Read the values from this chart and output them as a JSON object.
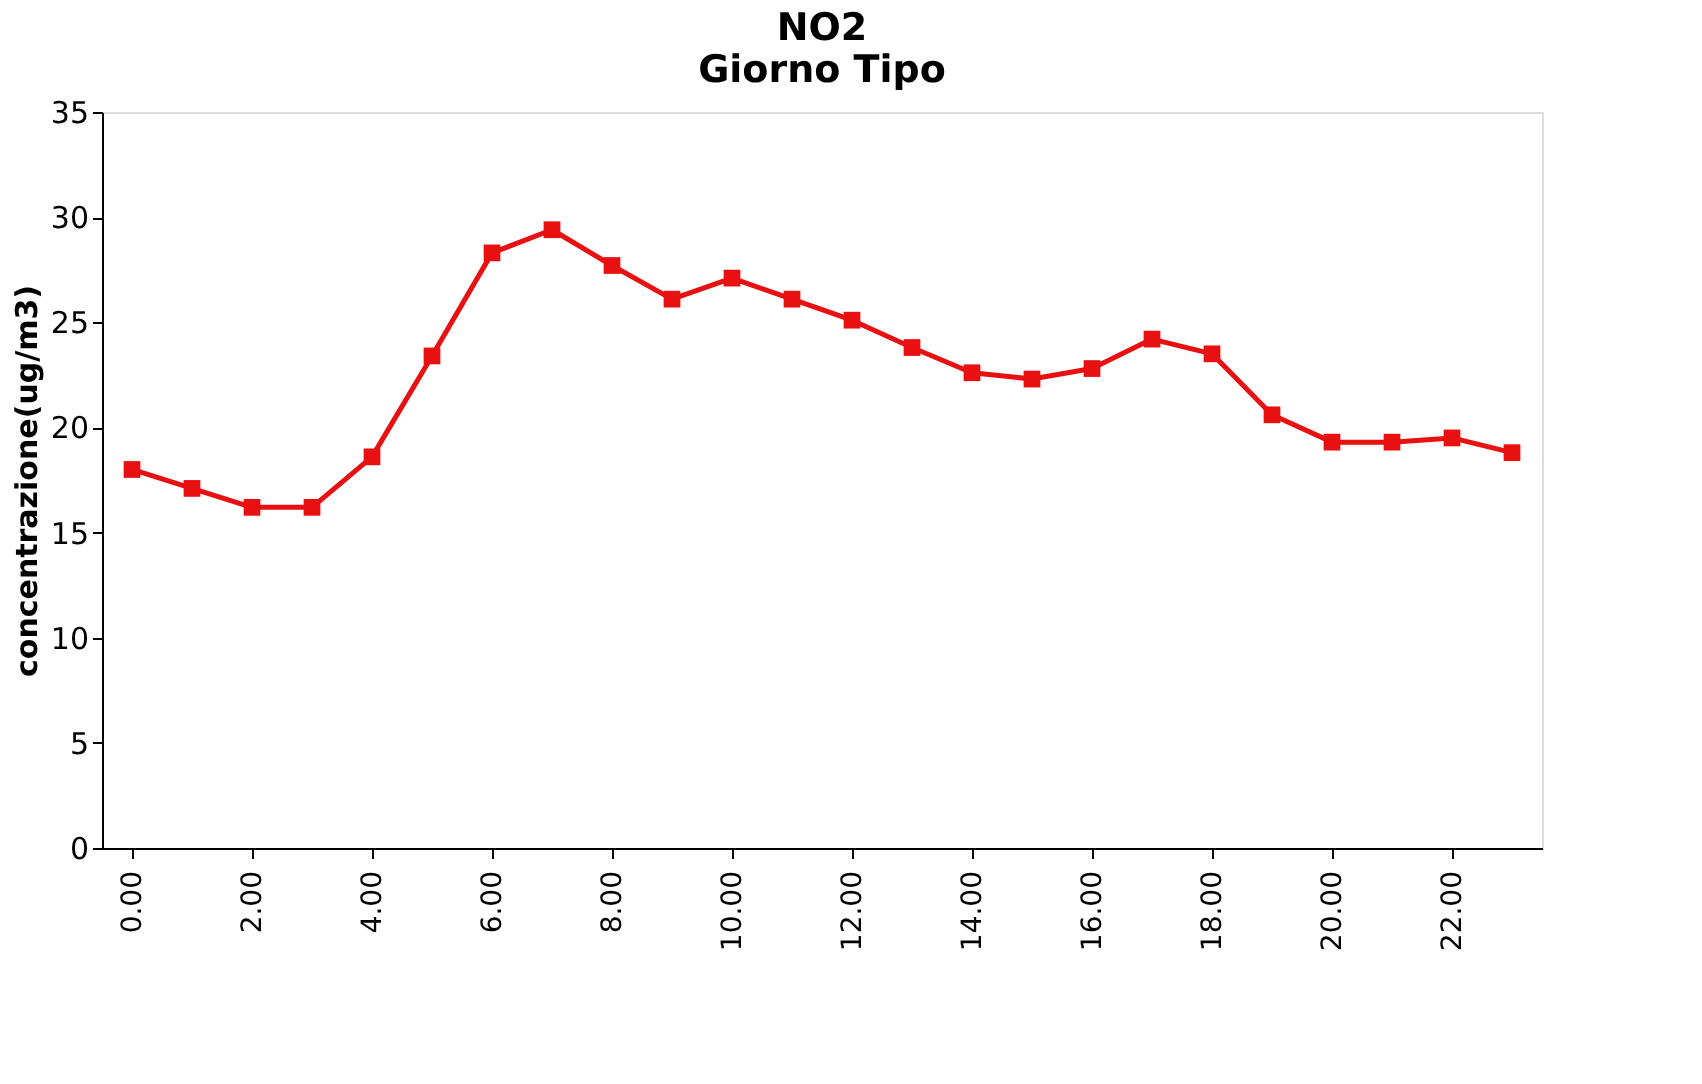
{
  "chart_data": {
    "type": "line",
    "title": [
      "NO2",
      "Giorno Tipo"
    ],
    "ylabel": "concentrazione(ug/m3)",
    "x": [
      0,
      1,
      2,
      3,
      4,
      5,
      6,
      7,
      8,
      9,
      10,
      11,
      12,
      13,
      14,
      15,
      16,
      17,
      18,
      19,
      20,
      21,
      22,
      23
    ],
    "series": [
      {
        "color": "#e81010",
        "values": [
          18.0,
          17.1,
          16.2,
          16.2,
          18.6,
          23.4,
          28.3,
          29.4,
          27.7,
          26.1,
          27.1,
          26.1,
          25.1,
          23.8,
          22.6,
          22.3,
          22.8,
          24.2,
          23.5,
          20.6,
          19.3,
          19.3,
          19.5,
          18.8
        ]
      }
    ],
    "xlim": [
      -0.5,
      23.5
    ],
    "xticks": [
      {
        "value": 0,
        "label": "0.00"
      },
      {
        "value": 2,
        "label": "2.00"
      },
      {
        "value": 4,
        "label": "4.00"
      },
      {
        "value": 6,
        "label": "6.00"
      },
      {
        "value": 8,
        "label": "8.00"
      },
      {
        "value": 10,
        "label": "10.00"
      },
      {
        "value": 12,
        "label": "12.00"
      },
      {
        "value": 14,
        "label": "14.00"
      },
      {
        "value": 16,
        "label": "16.00"
      },
      {
        "value": 18,
        "label": "18.00"
      },
      {
        "value": 20,
        "label": "20.00"
      },
      {
        "value": 22,
        "label": "22.00"
      }
    ],
    "ylim": [
      0,
      35
    ],
    "yticks": [
      0,
      5,
      10,
      15,
      20,
      25,
      30,
      35
    ],
    "grid": false,
    "legend": false,
    "marker": "square",
    "line_style": "solid"
  }
}
